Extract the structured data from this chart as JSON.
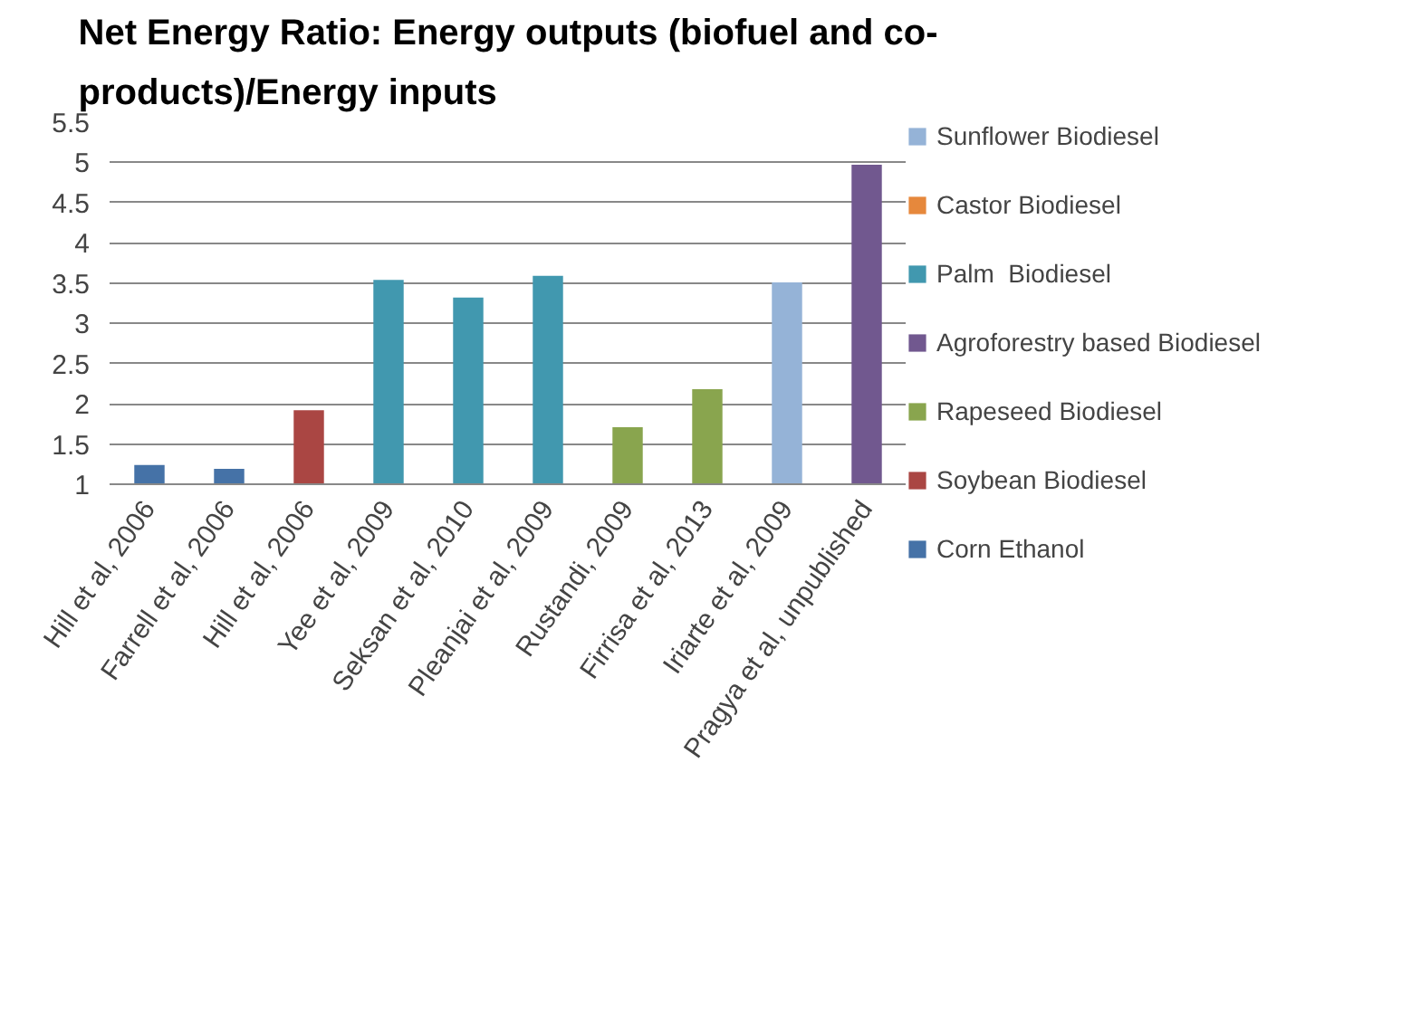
{
  "chart_data": {
    "type": "bar",
    "title": "Net Energy Ratio: Energy outputs (biofuel and co-products)/Energy inputs",
    "categories": [
      "Hill et al, 2006",
      "Farrell et al, 2006",
      "Hill et al, 2006",
      "Yee et al, 2009",
      "Seksan et al, 2010",
      "Pleanjai et al, 2009",
      "Rustandi, 2009",
      "Firrisa et al, 2013",
      "Iriarte et al, 2009",
      "Pragya et al, unpublished"
    ],
    "series": [
      {
        "name": "Sunflower Biodiesel",
        "color": "#95b3d7",
        "values": [
          null,
          null,
          null,
          null,
          null,
          null,
          null,
          null,
          3.51,
          null
        ]
      },
      {
        "name": "Castor Biodiesel",
        "color": "#e6883c",
        "values": [
          null,
          null,
          null,
          null,
          null,
          null,
          null,
          null,
          null,
          null
        ]
      },
      {
        "name": "Palm  Biodiesel",
        "color": "#4198af",
        "values": [
          null,
          null,
          null,
          3.54,
          3.32,
          3.59,
          null,
          null,
          null,
          null
        ]
      },
      {
        "name": "Agroforestry based Biodiesel",
        "color": "#71588f",
        "values": [
          null,
          null,
          null,
          null,
          null,
          null,
          null,
          null,
          null,
          4.97
        ]
      },
      {
        "name": "Rapeseed Biodiesel",
        "color": "#89a54e",
        "values": [
          null,
          null,
          null,
          null,
          null,
          null,
          1.71,
          2.18,
          null,
          null
        ]
      },
      {
        "name": "Soybean Biodiesel",
        "color": "#aa4643",
        "values": [
          null,
          null,
          1.92,
          null,
          null,
          null,
          null,
          null,
          null,
          null
        ]
      },
      {
        "name": "Corn Ethanol",
        "color": "#4572a7",
        "values": [
          1.24,
          1.19,
          null,
          null,
          null,
          null,
          null,
          null,
          null,
          null
        ]
      }
    ],
    "ylim": [
      1,
      5.5
    ],
    "yticks": [
      1,
      1.5,
      2,
      2.5,
      3,
      3.5,
      4,
      4.5,
      5,
      5.5
    ],
    "grid": "y",
    "legend": "right"
  }
}
